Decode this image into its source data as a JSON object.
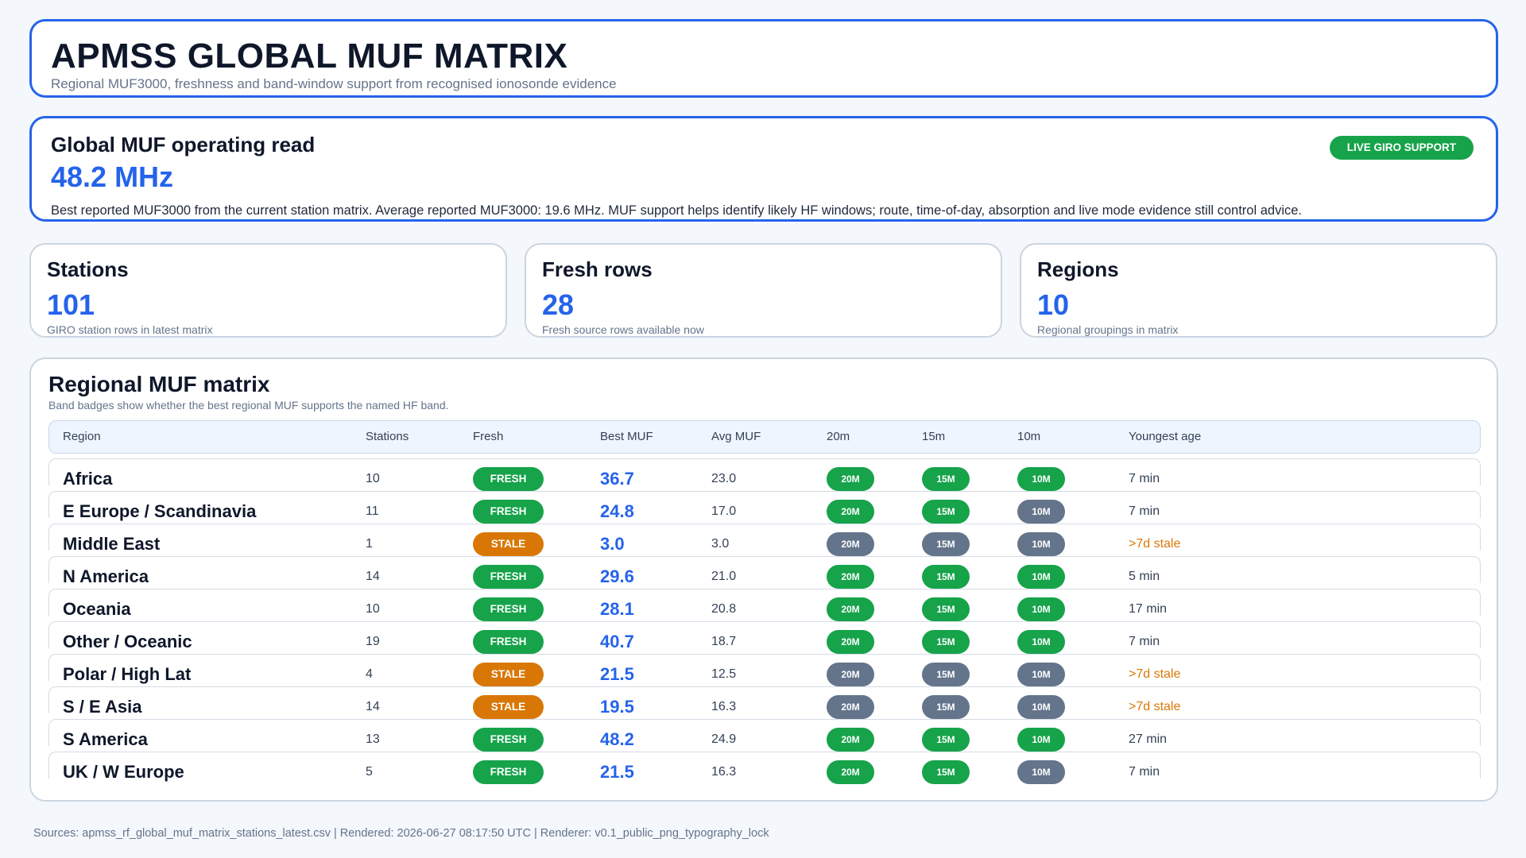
{
  "header": {
    "title": "APMSS GLOBAL MUF MATRIX",
    "subtitle": "Regional MUF3000, freshness and band-window support from recognised ionosonde evidence"
  },
  "global_read": {
    "heading": "Global MUF operating read",
    "value": "48.2 MHz",
    "description": "Best reported MUF3000 from the current station matrix. Average reported MUF3000: 19.6 MHz. MUF support helps identify likely HF windows; route, time-of-day, absorption and live mode evidence still control advice.",
    "badge": "LIVE GIRO SUPPORT"
  },
  "kpis": [
    {
      "label": "Stations",
      "value": "101",
      "sub": "GIRO station rows in latest matrix"
    },
    {
      "label": "Fresh rows",
      "value": "28",
      "sub": "Fresh source rows available now"
    },
    {
      "label": "Regions",
      "value": "10",
      "sub": "Regional groupings in matrix"
    }
  ],
  "matrix": {
    "title": "Regional MUF matrix",
    "subtitle": "Band badges show whether the best regional MUF supports the named HF band.",
    "columns": [
      "Region",
      "Stations",
      "Fresh",
      "Best MUF",
      "Avg MUF",
      "20m",
      "15m",
      "10m",
      "Youngest age"
    ],
    "band_labels": [
      "20M",
      "15M",
      "10M"
    ],
    "rows": [
      {
        "region": "Africa",
        "stations": "10",
        "fresh": "FRESH",
        "best": "36.7",
        "avg": "23.0",
        "b20": true,
        "b15": true,
        "b10": true,
        "age": "7 min"
      },
      {
        "region": "E Europe / Scandinavia",
        "stations": "11",
        "fresh": "FRESH",
        "best": "24.8",
        "avg": "17.0",
        "b20": true,
        "b15": true,
        "b10": false,
        "age": "7 min"
      },
      {
        "region": "Middle East",
        "stations": "1",
        "fresh": "STALE",
        "best": "3.0",
        "avg": "3.0",
        "b20": false,
        "b15": false,
        "b10": false,
        "age": ">7d stale"
      },
      {
        "region": "N America",
        "stations": "14",
        "fresh": "FRESH",
        "best": "29.6",
        "avg": "21.0",
        "b20": true,
        "b15": true,
        "b10": true,
        "age": "5 min"
      },
      {
        "region": "Oceania",
        "stations": "10",
        "fresh": "FRESH",
        "best": "28.1",
        "avg": "20.8",
        "b20": true,
        "b15": true,
        "b10": true,
        "age": "17 min"
      },
      {
        "region": "Other / Oceanic",
        "stations": "19",
        "fresh": "FRESH",
        "best": "40.7",
        "avg": "18.7",
        "b20": true,
        "b15": true,
        "b10": true,
        "age": "7 min"
      },
      {
        "region": "Polar / High Lat",
        "stations": "4",
        "fresh": "STALE",
        "best": "21.5",
        "avg": "12.5",
        "b20": false,
        "b15": false,
        "b10": false,
        "age": ">7d stale"
      },
      {
        "region": "S / E Asia",
        "stations": "14",
        "fresh": "STALE",
        "best": "19.5",
        "avg": "16.3",
        "b20": false,
        "b15": false,
        "b10": false,
        "age": ">7d stale"
      },
      {
        "region": "S America",
        "stations": "13",
        "fresh": "FRESH",
        "best": "48.2",
        "avg": "24.9",
        "b20": true,
        "b15": true,
        "b10": true,
        "age": "27 min"
      },
      {
        "region": "UK / W Europe",
        "stations": "5",
        "fresh": "FRESH",
        "best": "21.5",
        "avg": "16.3",
        "b20": true,
        "b15": true,
        "b10": false,
        "age": "7 min"
      }
    ]
  },
  "footer": "Sources: apmss_rf_global_muf_matrix_stations_latest.csv | Rendered: 2026-06-27 08:17:50 UTC | Renderer: v0.1_public_png_typography_lock",
  "colors": {
    "accent": "#2563eb",
    "fresh": "#16a34a",
    "stale": "#d97706",
    "unsupported": "#64748b"
  }
}
